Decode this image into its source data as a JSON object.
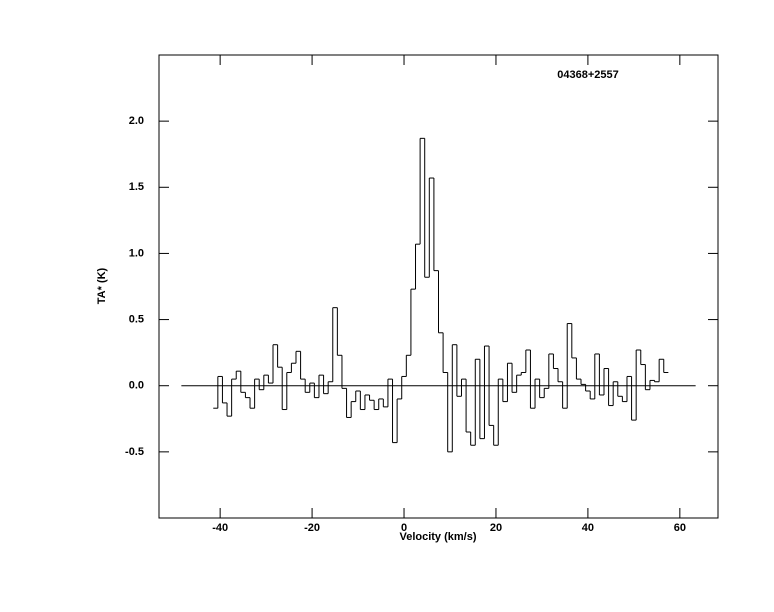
{
  "chart_data": {
    "type": "step",
    "title": "04368+2557",
    "x_label": "Velocity (km/s)",
    "y_label": "TA* (K)",
    "xlim": [
      -53.3,
      68.3
    ],
    "ylim": [
      -1.0,
      2.5
    ],
    "xticks": [
      -40,
      -20,
      0,
      20,
      40,
      60
    ],
    "yticks": [
      -0.5,
      {
        "value": 0,
        "label": "0.0"
      },
      0.5,
      {
        "value": 1,
        "label": "1.0"
      },
      1.5,
      {
        "value": 2,
        "label": "2.0"
      }
    ],
    "color": "#000000",
    "x": [
      -41,
      -40,
      -39,
      -38,
      -37,
      -36,
      -35,
      -34,
      -33,
      -32,
      -31,
      -30,
      -29,
      -28,
      -27,
      -26,
      -25,
      -24,
      -23,
      -22,
      -21,
      -20,
      -19,
      -18,
      -17,
      -16,
      -15,
      -14,
      -13,
      -12,
      -11,
      -10,
      -9,
      -8,
      -7,
      -6,
      -5,
      -4,
      -3,
      -2,
      -1,
      0,
      1,
      2,
      3,
      4,
      5,
      6,
      7,
      8,
      9,
      10,
      11,
      12,
      13,
      14,
      15,
      16,
      17,
      18,
      19,
      20,
      21,
      22,
      23,
      24,
      25,
      26,
      27,
      28,
      29,
      30,
      31,
      32,
      33,
      34,
      35,
      36,
      37,
      38,
      39,
      40,
      41,
      42,
      43,
      44,
      45,
      46,
      47,
      48,
      49,
      50,
      51,
      52,
      53,
      54,
      55,
      56,
      57
    ],
    "values": [
      -0.17,
      0.07,
      -0.13,
      -0.23,
      0.05,
      0.11,
      -0.05,
      -0.09,
      -0.17,
      0.05,
      -0.03,
      0.08,
      0.02,
      0.31,
      0.14,
      -0.18,
      0.1,
      0.17,
      0.26,
      0.05,
      -0.05,
      0.02,
      -0.09,
      0.08,
      -0.06,
      0.03,
      0.59,
      0.23,
      -0.02,
      -0.24,
      -0.12,
      -0.04,
      -0.18,
      -0.07,
      -0.11,
      -0.18,
      -0.1,
      -0.16,
      0.05,
      -0.43,
      -0.1,
      0.07,
      0.23,
      0.73,
      1.07,
      1.87,
      0.82,
      1.57,
      0.87,
      0.4,
      0.1,
      -0.5,
      0.31,
      -0.08,
      0.05,
      -0.35,
      -0.45,
      0.2,
      -0.4,
      0.3,
      -0.3,
      -0.45,
      0.05,
      -0.12,
      0.17,
      -0.05,
      0.08,
      0.1,
      0.27,
      -0.17,
      0.05,
      -0.09,
      -0.02,
      0.24,
      0.13,
      0.03,
      -0.17,
      0.47,
      0.21,
      0.05,
      0.01,
      -0.04,
      -0.1,
      0.24,
      -0.07,
      0.13,
      -0.15,
      0.03,
      -0.08,
      -0.12,
      0.07,
      -0.26,
      0.27,
      0.16,
      -0.03,
      0.04,
      0.03,
      0.2,
      0.1
    ]
  }
}
